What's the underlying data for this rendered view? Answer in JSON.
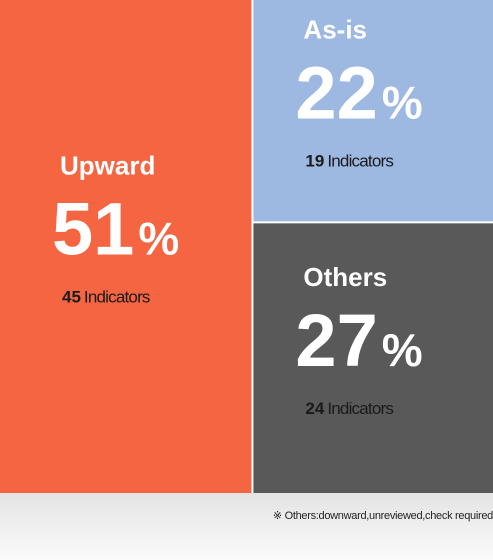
{
  "chart_data": {
    "type": "treemap",
    "categories": [
      "Upward",
      "As-is",
      "Others"
    ],
    "values": [
      51,
      22,
      27
    ],
    "unit": "%",
    "counts": [
      45,
      19,
      24
    ],
    "count_label": "Indicators",
    "colors": [
      "#f56542",
      "#9db9e2",
      "#5a5959"
    ],
    "note": "※ Others:downward,unreviewed,check required"
  }
}
